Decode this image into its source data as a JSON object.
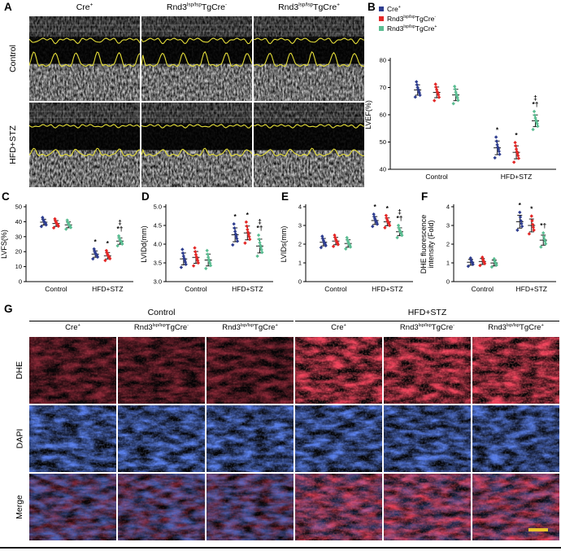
{
  "figure": {
    "conditions": [
      "Control",
      "HFD+STZ"
    ],
    "groups": [
      {
        "name": "Cre^{+}",
        "color": "#2e3d8f"
      },
      {
        "name": "Rnd3^{lsp/lsp}TgCre^{-}",
        "color": "#e32726"
      },
      {
        "name": "Rnd3^{lsp/lsp}TgCre^{+}",
        "color": "#5bbd92"
      }
    ],
    "panelA": {
      "label": "A",
      "col_headers": [
        "Cre^{+}",
        "Rnd3^{lsp/lsp}TgCre^{-}",
        "Rnd3^{lsp/lsp}TgCre^{+}"
      ],
      "row_labels": [
        "Control",
        "HFD+STZ"
      ],
      "trace_color": "#e6df3a"
    },
    "panelB": {
      "label": "B"
    },
    "panelC": {
      "label": "C"
    },
    "panelD": {
      "label": "D"
    },
    "panelE": {
      "label": "E"
    },
    "panelF": {
      "label": "F"
    },
    "panelG": {
      "label": "G",
      "group_headers": [
        "Control",
        "HFD+STZ"
      ],
      "col_headers": [
        "Cre^{+}",
        "Rnd3^{lsp/lsp}TgCre^{-}",
        "Rnd3^{lsp/lsp}TgCre^{+}",
        "Cre^{+}",
        "Rnd3^{lsp/lsp}TgCre^{-}",
        "Rnd3^{lsp/lsp}TgCre^{+}"
      ],
      "row_labels": [
        "DHE",
        "DAPI",
        "Merge"
      ],
      "scalebar_color": "#e8c12c"
    }
  },
  "chart_data": [
    {
      "type": "scatter",
      "panel": "B",
      "ylabel": "LVEF(%)",
      "ylim": [
        40,
        80
      ],
      "yticks": [
        "40",
        "50",
        "60",
        "70",
        "80"
      ],
      "categories": [
        "Control",
        "HFD+STZ"
      ],
      "legend_position": "top-right",
      "grid": false,
      "series": [
        {
          "name": "Cre^{+}",
          "values": [
            [
              66.5,
              67.2,
              68,
              68.6,
              69.3,
              70,
              71,
              72.1
            ],
            [
              44.2,
              45.5,
              46.6,
              47.4,
              48.1,
              49,
              50.3,
              51.8
            ]
          ]
        },
        {
          "name": "Rnd3^{lsp/lsp}TgCre^{-}",
          "values": [
            [
              65.2,
              66.4,
              67.3,
              67.9,
              68.4,
              69.2,
              70.1,
              71.2
            ],
            [
              42.6,
              44,
              45,
              45.8,
              46.5,
              47.4,
              48.6,
              49.8
            ]
          ]
        },
        {
          "name": "Rnd3^{lsp/lsp}TgCre^{+}",
          "values": [
            [
              64.1,
              65.3,
              66.2,
              66.9,
              67.5,
              68.3,
              69.4,
              70.4
            ],
            [
              54.6,
              55.8,
              56.7,
              57.4,
              58,
              58.8,
              59.8,
              61.2
            ]
          ]
        }
      ],
      "annotations": [
        {
          "cat": 1,
          "series": 0,
          "text": "*"
        },
        {
          "cat": 1,
          "series": 1,
          "text": "*"
        },
        {
          "cat": 1,
          "series": 2,
          "text": "‡\n*†"
        }
      ]
    },
    {
      "type": "scatter",
      "panel": "C",
      "ylabel": "LVFS(%)",
      "ylim": [
        0,
        50
      ],
      "yticks": [
        "0",
        "10",
        "20",
        "30",
        "40",
        "50"
      ],
      "categories": [
        "Control",
        "HFD+STZ"
      ],
      "grid": false,
      "series": [
        {
          "name": "Cre^{+}",
          "values": [
            [
              36.8,
              37.9,
              38.7,
              39.3,
              39.9,
              40.6,
              41.5,
              42.8
            ],
            [
              15.2,
              16.4,
              17.3,
              17.9,
              18.5,
              19.3,
              20.4,
              21.8
            ]
          ]
        },
        {
          "name": "Rnd3^{lsp/lsp}TgCre^{-}",
          "values": [
            [
              35.9,
              37,
              37.8,
              38.4,
              39,
              39.7,
              40.6,
              41.9
            ],
            [
              14.1,
              15.3,
              16.2,
              16.8,
              17.4,
              18.2,
              19.3,
              20.7
            ]
          ]
        },
        {
          "name": "Rnd3^{lsp/lsp}TgCre^{+}",
          "values": [
            [
              35,
              36.1,
              36.9,
              37.5,
              38.1,
              38.8,
              39.7,
              41
            ],
            [
              23.9,
              25.1,
              26,
              26.6,
              27.2,
              28,
              29.1,
              30.5
            ]
          ]
        }
      ],
      "annotations": [
        {
          "cat": 1,
          "series": 0,
          "text": "*"
        },
        {
          "cat": 1,
          "series": 1,
          "text": "*"
        },
        {
          "cat": 1,
          "series": 2,
          "text": "‡\n*†"
        }
      ]
    },
    {
      "type": "scatter",
      "panel": "D",
      "ylabel": "LVIDd(mm)",
      "ylim": [
        3.0,
        5.0
      ],
      "yticks": [
        "3.0",
        "3.5",
        "4.0",
        "4.5",
        "5.0"
      ],
      "categories": [
        "Control",
        "HFD+STZ"
      ],
      "grid": false,
      "series": [
        {
          "name": "Cre^{+}",
          "values": [
            [
              3.38,
              3.46,
              3.52,
              3.57,
              3.62,
              3.68,
              3.76,
              3.86
            ],
            [
              3.98,
              4.08,
              4.15,
              4.21,
              4.27,
              4.34,
              4.43,
              4.54
            ]
          ]
        },
        {
          "name": "Rnd3^{lsp/lsp}TgCre^{-}",
          "values": [
            [
              3.42,
              3.5,
              3.56,
              3.61,
              3.66,
              3.72,
              3.8,
              3.9
            ],
            [
              4.03,
              4.13,
              4.2,
              4.26,
              4.32,
              4.39,
              4.48,
              4.59
            ]
          ]
        },
        {
          "name": "Rnd3^{lsp/lsp}TgCre^{+}",
          "values": [
            [
              3.35,
              3.43,
              3.49,
              3.54,
              3.59,
              3.65,
              3.73,
              3.83
            ],
            [
              3.68,
              3.78,
              3.85,
              3.91,
              3.97,
              4.04,
              4.13,
              4.24
            ]
          ]
        }
      ],
      "annotations": [
        {
          "cat": 1,
          "series": 0,
          "text": "*"
        },
        {
          "cat": 1,
          "series": 1,
          "text": "*"
        },
        {
          "cat": 1,
          "series": 2,
          "text": "‡\n*†"
        }
      ]
    },
    {
      "type": "scatter",
      "panel": "E",
      "ylabel": "LVIDs(mm)",
      "ylim": [
        0,
        4
      ],
      "yticks": [
        "0",
        "1",
        "2",
        "3",
        "4"
      ],
      "categories": [
        "Control",
        "HFD+STZ"
      ],
      "grid": false,
      "series": [
        {
          "name": "Cre^{+}",
          "values": [
            [
              1.82,
              1.92,
              2.0,
              2.06,
              2.12,
              2.2,
              2.3,
              2.42
            ],
            [
              2.95,
              3.07,
              3.16,
              3.22,
              3.28,
              3.36,
              3.46,
              3.6
            ]
          ]
        },
        {
          "name": "Rnd3^{lsp/lsp}TgCre^{-}",
          "values": [
            [
              1.88,
              1.98,
              2.06,
              2.12,
              2.18,
              2.26,
              2.36,
              2.48
            ],
            [
              2.88,
              3.0,
              3.09,
              3.15,
              3.21,
              3.29,
              3.39,
              3.53
            ]
          ]
        },
        {
          "name": "Rnd3^{lsp/lsp}TgCre^{+}",
          "values": [
            [
              1.75,
              1.85,
              1.93,
              1.99,
              2.05,
              2.13,
              2.23,
              2.35
            ],
            [
              2.35,
              2.47,
              2.56,
              2.62,
              2.68,
              2.76,
              2.86,
              3.0
            ]
          ]
        }
      ],
      "annotations": [
        {
          "cat": 1,
          "series": 0,
          "text": "*"
        },
        {
          "cat": 1,
          "series": 1,
          "text": "*"
        },
        {
          "cat": 1,
          "series": 2,
          "text": "‡\n*†"
        }
      ]
    },
    {
      "type": "scatter",
      "panel": "F",
      "ylabel": "DHE fluorescence\nintensity (Fold)",
      "ylim": [
        0,
        4
      ],
      "yticks": [
        "0",
        "1",
        "2",
        "3",
        "4"
      ],
      "categories": [
        "Control",
        "HFD+STZ"
      ],
      "grid": false,
      "series": [
        {
          "name": "Cre^{+}",
          "values": [
            [
              0.82,
              0.92,
              1.0,
              1.06,
              1.14,
              1.26
            ],
            [
              2.75,
              2.95,
              3.1,
              3.25,
              3.45,
              3.7
            ]
          ]
        },
        {
          "name": "Rnd3^{lsp/lsp}TgCre^{-}",
          "values": [
            [
              0.86,
              0.96,
              1.04,
              1.1,
              1.18,
              1.3
            ],
            [
              2.55,
              2.75,
              2.9,
              3.05,
              3.25,
              3.5
            ]
          ]
        },
        {
          "name": "Rnd3^{lsp/lsp}TgCre^{+}",
          "values": [
            [
              0.78,
              0.88,
              0.96,
              1.02,
              1.1,
              1.22
            ],
            [
              1.85,
              2.02,
              2.15,
              2.26,
              2.4,
              2.6
            ]
          ]
        }
      ],
      "annotations": [
        {
          "cat": 1,
          "series": 0,
          "text": "*"
        },
        {
          "cat": 1,
          "series": 1,
          "text": "*"
        },
        {
          "cat": 1,
          "series": 2,
          "text": "*†"
        }
      ]
    }
  ]
}
